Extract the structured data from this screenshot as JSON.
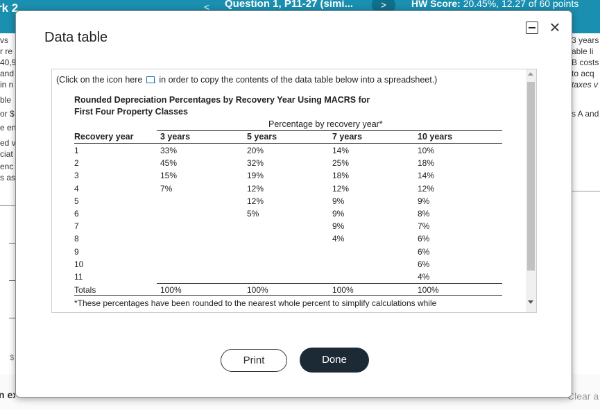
{
  "background": {
    "hw_title": "rk 2",
    "question_title": "Question 1, P11-27 (simi...",
    "nav_prev": "<",
    "nav_next": ">",
    "hw_score_label": "HW Score:",
    "hw_score_value": "20.45%, 12.27 of 60 points",
    "left_fragments": [
      "vs",
      "r re",
      "40,9",
      "and",
      "in n",
      "ble",
      "or $",
      "e en",
      "ed v",
      "ciat",
      "enc",
      "s as"
    ],
    "right_fragments": [
      "3 years",
      "able li",
      "B costs",
      "to acq",
      "taxes v",
      "s A and"
    ],
    "dollar": "$",
    "bottom_left": "n example",
    "bottom_right": "Clear a"
  },
  "modal": {
    "title": "Data table",
    "minimize_label": "",
    "close_label": "×",
    "instruction_before": "(Click on the icon here",
    "instruction_after": "in order to copy the contents of the data table below into a spreadsheet.)",
    "table_title_line1": "Rounded Depreciation Percentages by Recovery Year Using MACRS for",
    "table_title_line2": "First Four Property Classes",
    "percentage_header": "Percentage by recovery year*",
    "columns": [
      "Recovery year",
      "3 years",
      "5 years",
      "7 years",
      "10 years"
    ],
    "rows": [
      [
        "1",
        "33%",
        "20%",
        "14%",
        "10%"
      ],
      [
        "2",
        "45%",
        "32%",
        "25%",
        "18%"
      ],
      [
        "3",
        "15%",
        "19%",
        "18%",
        "14%"
      ],
      [
        "4",
        "7%",
        "12%",
        "12%",
        "12%"
      ],
      [
        "5",
        "",
        "12%",
        "9%",
        "9%"
      ],
      [
        "6",
        "",
        "5%",
        "9%",
        "8%"
      ],
      [
        "7",
        "",
        "",
        "9%",
        "7%"
      ],
      [
        "8",
        "",
        "",
        "4%",
        "6%"
      ],
      [
        "9",
        "",
        "",
        "",
        "6%"
      ],
      [
        "10",
        "",
        "",
        "",
        "6%"
      ],
      [
        "11",
        "",
        "",
        "",
        "4%"
      ]
    ],
    "totals": [
      "Totals",
      "100%",
      "100%",
      "100%",
      "100%"
    ],
    "footnote": "*These percentages have been rounded to the nearest whole percent to simplify calculations while",
    "print_label": "Print",
    "done_label": "Done"
  }
}
